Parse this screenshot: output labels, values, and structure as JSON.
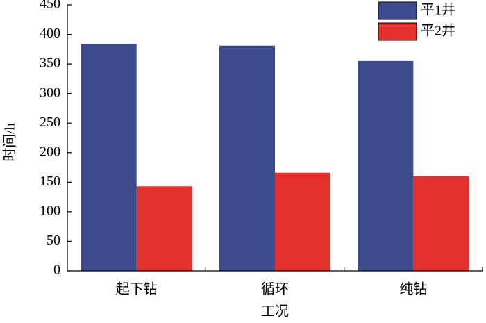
{
  "chart_data": {
    "type": "bar",
    "x_label": "工况",
    "y_label": "时间/h",
    "categories": [
      "起下钻",
      "循环",
      "纯钻"
    ],
    "series": [
      {
        "name": "平1井",
        "color": "#3c4a8e",
        "values": [
          384,
          381,
          355
        ]
      },
      {
        "name": "平2井",
        "color": "#e3302a",
        "values": [
          143,
          166,
          160
        ]
      }
    ],
    "ylim": [
      0,
      450
    ],
    "yticks": [
      0,
      50,
      100,
      150,
      200,
      250,
      300,
      350,
      400,
      450
    ],
    "legend": "upper right"
  }
}
